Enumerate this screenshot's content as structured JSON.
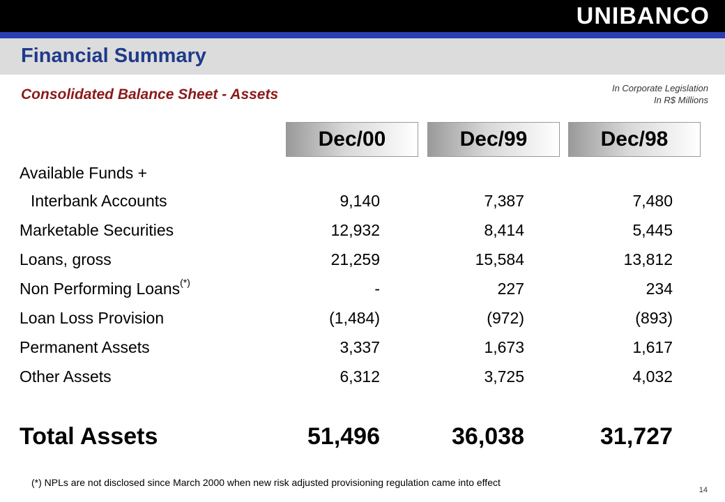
{
  "header": {
    "logo": "UNIBANCO",
    "title": "Financial Summary"
  },
  "subtitle": "Consolidated Balance Sheet - Assets",
  "notes": {
    "line1": "In Corporate Legislation",
    "line2": "In R$ Millions"
  },
  "columns": [
    "Dec/00",
    "Dec/99",
    "Dec/98"
  ],
  "rows": [
    {
      "label": "Available Funds +",
      "values": [
        "",
        "",
        ""
      ]
    },
    {
      "label": "Interbank Accounts",
      "values": [
        "9,140",
        "7,387",
        "7,480"
      ]
    },
    {
      "label": "Marketable Securities",
      "values": [
        "12,932",
        "8,414",
        "5,445"
      ]
    },
    {
      "label": "Loans, gross",
      "values": [
        "21,259",
        "15,584",
        "13,812"
      ]
    },
    {
      "label": "Non Performing Loans",
      "sup": "(*)",
      "values": [
        "-",
        "227",
        "234"
      ]
    },
    {
      "label": "Loan Loss Provision",
      "values": [
        "(1,484)",
        "(972)",
        "(893)"
      ]
    },
    {
      "label": "Permanent Assets",
      "values": [
        "3,337",
        "1,673",
        "1,617"
      ]
    },
    {
      "label": "Other Assets",
      "values": [
        "6,312",
        "3,725",
        "4,032"
      ]
    }
  ],
  "total": {
    "label": "Total Assets",
    "values": [
      "51,496",
      "36,038",
      "31,727"
    ]
  },
  "footnote": "(*) NPLs are not disclosed since March 2000 when new risk adjusted provisioning regulation came into effect",
  "page_number": "14"
}
